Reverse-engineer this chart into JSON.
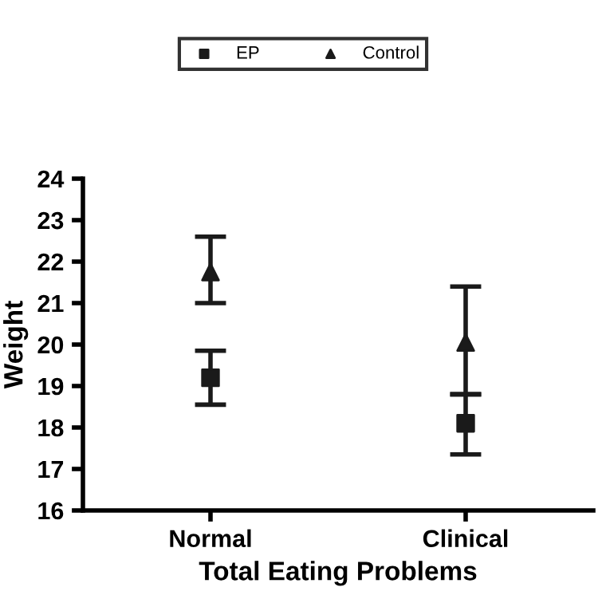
{
  "chart_data": {
    "type": "scatter",
    "xlabel": "Total Eating Problems",
    "ylabel": "Weight",
    "categories": [
      "Normal",
      "Clinical"
    ],
    "series": [
      {
        "name": "EP",
        "color": "#1a1a1a",
        "marker": "square",
        "values": [
          19.2,
          18.1
        ],
        "errors": [
          [
            18.55,
            19.85
          ],
          [
            17.35,
            18.8
          ]
        ]
      },
      {
        "name": "Control",
        "color": "#1a1a1a",
        "marker": "triangle",
        "values": [
          21.75,
          20.05
        ],
        "errors": [
          [
            21.0,
            22.6
          ],
          [
            18.8,
            21.4
          ]
        ]
      }
    ],
    "ylim": [
      16,
      24
    ],
    "yticks": [
      16,
      17,
      18,
      19,
      20,
      21,
      22,
      23,
      24
    ],
    "legend": "top",
    "grid": false
  }
}
